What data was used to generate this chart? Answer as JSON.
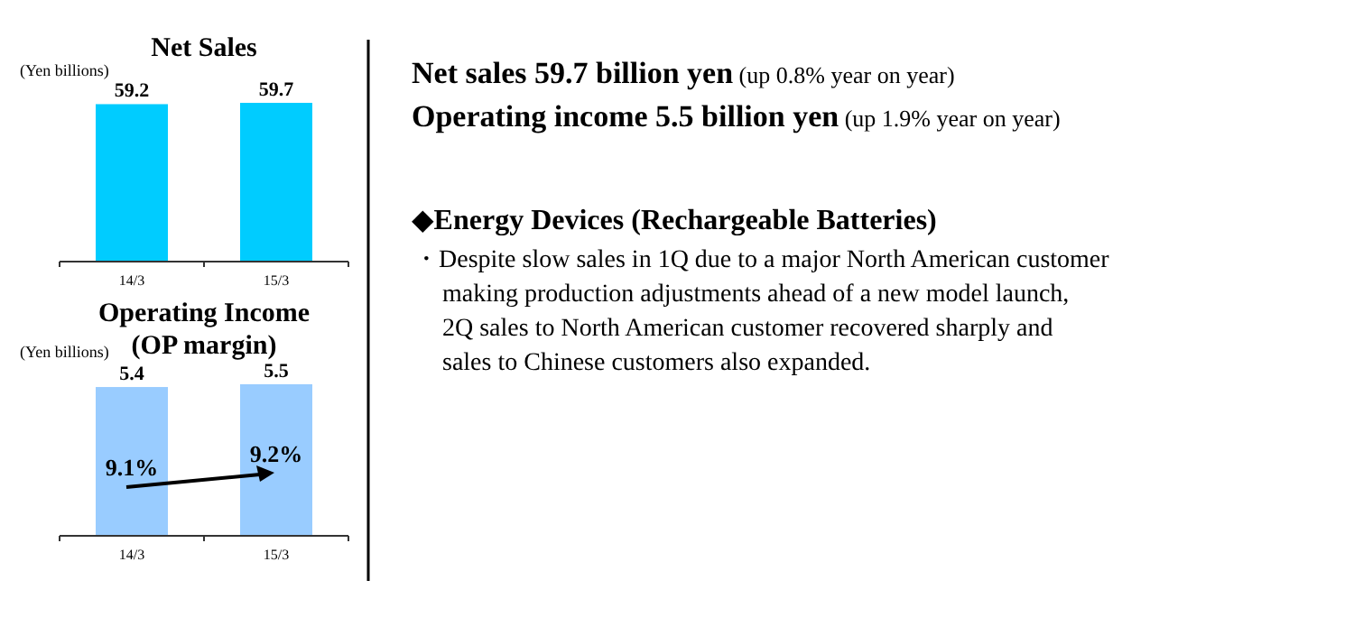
{
  "chart_data": [
    {
      "type": "bar",
      "title": "Net Sales",
      "ylabel": "(Yen billions)",
      "categories": [
        "14/3",
        "15/3"
      ],
      "values": [
        59.2,
        59.7
      ],
      "color": "#00ccff",
      "data_labels": true,
      "tick_labels": "x",
      "grid": false
    },
    {
      "type": "bar",
      "title": "Operating Income",
      "subtitle": "(OP margin)",
      "ylabel": "(Yen billions)",
      "categories": [
        "14/3",
        "15/3"
      ],
      "values": [
        5.4,
        5.5
      ],
      "color": "#99ccff",
      "data_labels": true,
      "tick_labels": "x",
      "grid": false,
      "annotations": [
        "9.1%",
        "9.2%"
      ]
    },
    {
      "type": "other",
      "annotations": [
        "Net sales 59.7 billion yen",
        "(up 0.8% year on year)",
        "Operating income 5.5 billion yen",
        "(up 1.9% year on year)",
        "◆Energy Devices (Rechargeable Batteries)",
        "・Despite slow sales in 1Q due to a major North American customer",
        "making production adjustments ahead of a new model launch,",
        "2Q sales to North American customer recovered sharply and",
        "sales to Chinese customers also expanded."
      ]
    }
  ]
}
